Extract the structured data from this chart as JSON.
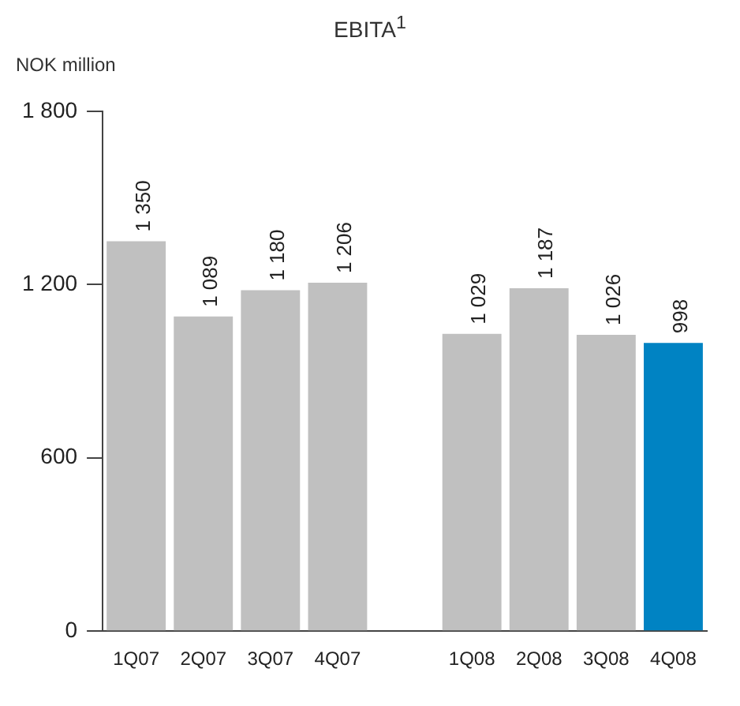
{
  "chart_data": {
    "type": "bar",
    "title": "EBITA$^{1}$",
    "ylabel": "NOK million",
    "categories": [
      "1Q07",
      "2Q07",
      "3Q07",
      "4Q07",
      null,
      "1Q08",
      "2Q08",
      "3Q08",
      "4Q08"
    ],
    "values": [
      1350,
      1089,
      1180,
      1206,
      null,
      1029,
      1187,
      1026,
      998
    ],
    "colors": [
      "#c0c0c0",
      "#c0c0c0",
      "#c0c0c0",
      "#c0c0c0",
      "#c0c0c0",
      "#c0c0c0",
      "#c0c0c0",
      "#c0c0c0",
      "#0083c3"
    ],
    "value_labels": [
      "1 350",
      "1 089",
      "1 180",
      "1 206",
      null,
      "1 029",
      "1 187",
      "1 026",
      "998"
    ],
    "ylim": [
      0,
      1800
    ],
    "yticks": [
      {
        "value": 0,
        "label": "0"
      },
      {
        "value": 600,
        "label": "600"
      },
      {
        "value": 1200,
        "label": "1 200"
      },
      {
        "value": 1800,
        "label": "1 800"
      }
    ],
    "legend": false
  }
}
